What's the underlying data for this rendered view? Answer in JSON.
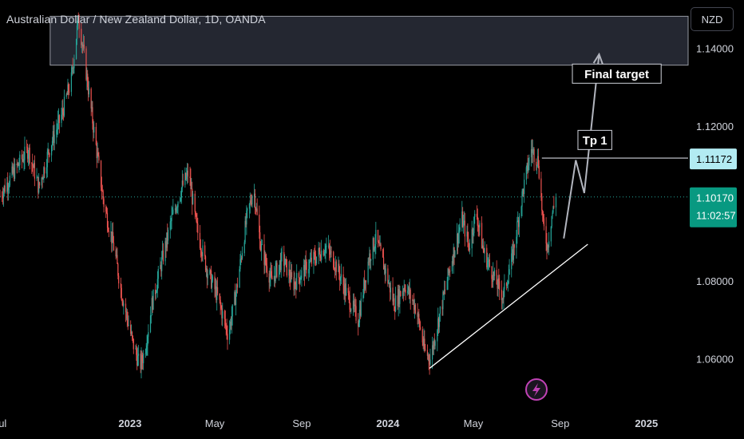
{
  "header": {
    "title": "Australian Dollar / New Zealand Dollar, 1D, OANDA",
    "currency": "NZD"
  },
  "colors": {
    "up": "#26a69a",
    "down": "#ef5350",
    "tp_label_bg": "#b2ebf2",
    "last_price_bg": "#089981",
    "zone_fill": "#2a2e39",
    "grid": "#5d606b"
  },
  "chart_data": {
    "type": "candlestick",
    "symbol": "AUDNZD",
    "interval": "1D",
    "y_ticks": [
      1.06,
      1.08,
      1.12,
      1.14
    ],
    "y_tick_labels": [
      "1.06000",
      "1.08000",
      "1.12000",
      "1.14000"
    ],
    "ylim": [
      1.0475,
      1.1525
    ],
    "x_tick_labels": [
      "Jul",
      "2023",
      "May",
      "Sep",
      "2024",
      "May",
      "Sep",
      "2025"
    ],
    "x_ticks": [
      "2022-07-01",
      "2023-01-01",
      "2023-05-01",
      "2023-09-01",
      "2024-01-01",
      "2024-05-01",
      "2024-09-01",
      "2025-01-01"
    ],
    "xlim": [
      "2022-07-01",
      "2025-03-01"
    ],
    "price_path": [
      [
        "2022-07-01",
        1.102
      ],
      [
        "2022-07-20",
        1.108
      ],
      [
        "2022-08-10",
        1.114
      ],
      [
        "2022-08-25",
        1.104
      ],
      [
        "2022-09-10",
        1.115
      ],
      [
        "2022-09-25",
        1.122
      ],
      [
        "2022-10-10",
        1.132
      ],
      [
        "2022-10-20",
        1.148
      ],
      [
        "2022-10-28",
        1.138
      ],
      [
        "2022-11-10",
        1.12
      ],
      [
        "2022-11-25",
        1.1
      ],
      [
        "2022-12-10",
        1.088
      ],
      [
        "2022-12-20",
        1.077
      ],
      [
        "2023-01-05",
        1.064
      ],
      [
        "2023-01-15",
        1.058
      ],
      [
        "2023-01-22",
        1.062
      ],
      [
        "2023-02-01",
        1.074
      ],
      [
        "2023-02-15",
        1.085
      ],
      [
        "2023-03-01",
        1.096
      ],
      [
        "2023-03-15",
        1.104
      ],
      [
        "2023-03-25",
        1.108
      ],
      [
        "2023-04-05",
        1.094
      ],
      [
        "2023-04-20",
        1.083
      ],
      [
        "2023-05-05",
        1.076
      ],
      [
        "2023-05-20",
        1.066
      ],
      [
        "2023-06-01",
        1.078
      ],
      [
        "2023-06-15",
        1.096
      ],
      [
        "2023-06-25",
        1.104
      ],
      [
        "2023-07-05",
        1.089
      ],
      [
        "2023-07-20",
        1.08
      ],
      [
        "2023-08-05",
        1.086
      ],
      [
        "2023-08-20",
        1.079
      ],
      [
        "2023-09-05",
        1.083
      ],
      [
        "2023-09-20",
        1.086
      ],
      [
        "2023-10-05",
        1.089
      ],
      [
        "2023-10-20",
        1.084
      ],
      [
        "2023-11-05",
        1.076
      ],
      [
        "2023-11-20",
        1.07
      ],
      [
        "2023-12-05",
        1.086
      ],
      [
        "2023-12-15",
        1.091
      ],
      [
        "2023-12-28",
        1.083
      ],
      [
        "2024-01-10",
        1.074
      ],
      [
        "2024-01-25",
        1.079
      ],
      [
        "2024-02-10",
        1.073
      ],
      [
        "2024-02-22",
        1.062
      ],
      [
        "2024-03-01",
        1.06
      ],
      [
        "2024-03-15",
        1.072
      ],
      [
        "2024-04-01",
        1.086
      ],
      [
        "2024-04-15",
        1.096
      ],
      [
        "2024-04-25",
        1.089
      ],
      [
        "2024-05-05",
        1.098
      ],
      [
        "2024-05-15",
        1.088
      ],
      [
        "2024-05-30",
        1.081
      ],
      [
        "2024-06-12",
        1.076
      ],
      [
        "2024-06-25",
        1.086
      ],
      [
        "2024-07-10",
        1.103
      ],
      [
        "2024-07-22",
        1.114
      ],
      [
        "2024-08-01",
        1.111
      ],
      [
        "2024-08-08",
        1.094
      ],
      [
        "2024-08-14",
        1.089
      ],
      [
        "2024-08-20",
        1.097
      ],
      [
        "2024-08-26",
        1.101
      ]
    ],
    "resistance_zone": {
      "from": "2022-09-10",
      "to": "2025-03-01",
      "top": 1.1483,
      "bottom": 1.1357
    },
    "trendline": {
      "from": [
        "2024-02-29",
        1.0575
      ],
      "to": [
        "2024-10-10",
        1.0895
      ]
    },
    "tp_line": {
      "from": "2024-08-06",
      "to": "2025-03-01",
      "price": 1.11172
    },
    "last_price_line": 1.1017,
    "projection": [
      [
        "2024-09-06",
        1.091
      ],
      [
        "2024-09-23",
        1.1112
      ],
      [
        "2024-10-05",
        1.1027
      ],
      [
        "2024-10-26",
        1.1385
      ]
    ],
    "annotations": [
      {
        "text": "Final target",
        "date": "2024-11-20",
        "price": 1.1335
      },
      {
        "text": "Tp 1",
        "date": "2024-10-20",
        "price": 1.1164
      }
    ],
    "price_labels": [
      {
        "text": "1.11172",
        "price": 1.11172
      },
      {
        "text": "1.10170",
        "price": 1.1017,
        "subtext": "11:02:57"
      }
    ]
  }
}
